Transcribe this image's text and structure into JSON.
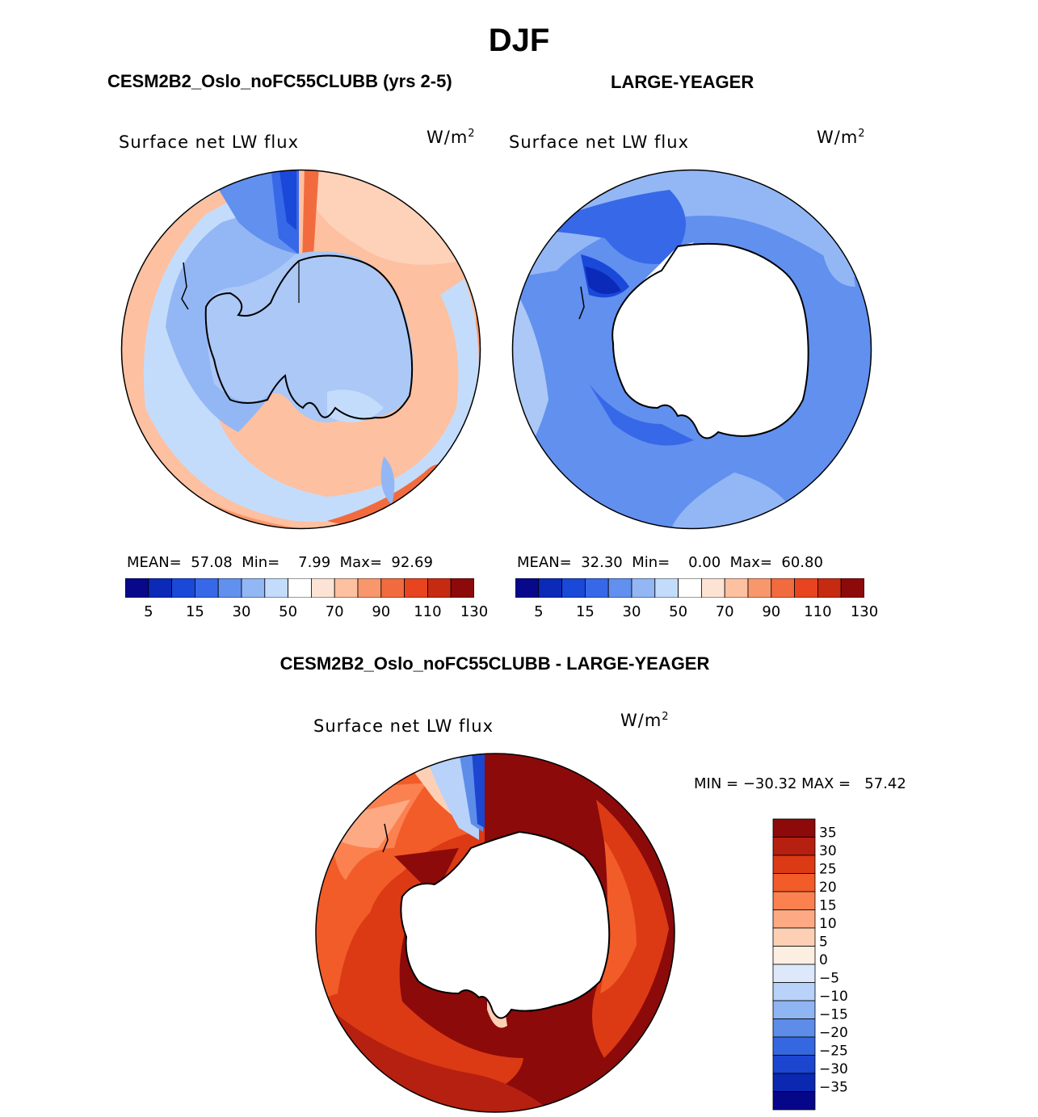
{
  "page": {
    "title": "DJF",
    "left_title": "CESM2B2_Oslo_noFC55CLUBB (yrs 2-5)",
    "right_title": "LARGE-YEAGER",
    "diff_title": "CESM2B2_Oslo_noFC55CLUBB - LARGE-YEAGER"
  },
  "chart_data": [
    {
      "type": "heatmap",
      "projection": "south-polar-stereographic",
      "title": "CESM2B2_Oslo_noFC55CLUBB (yrs 2-5)",
      "variable": "Surface net LW flux",
      "units_base": "W/m",
      "units_exp": "2",
      "stats": {
        "mean_label": "MEAN=",
        "mean": "57.08",
        "min_label": "Min=",
        "min": "7.99",
        "max_label": "Max=",
        "max": "92.69"
      },
      "colorbar": {
        "colors": [
          "#08088a",
          "#0b2ab8",
          "#1a48d8",
          "#3768e8",
          "#6190ef",
          "#93b7f5",
          "#c4dcfb",
          "#ffffff",
          "#fde3d3",
          "#fdc0a0",
          "#f9976c",
          "#f26b3f",
          "#e8441f",
          "#c62a10",
          "#8c0a0a"
        ],
        "tick_labels": [
          "5",
          "15",
          "30",
          "50",
          "70",
          "90",
          "110",
          "130"
        ]
      }
    },
    {
      "type": "heatmap",
      "projection": "south-polar-stereographic",
      "title": "LARGE-YEAGER",
      "variable": "Surface net LW flux",
      "units_base": "W/m",
      "units_exp": "2",
      "stats": {
        "mean_label": "MEAN=",
        "mean": "32.30",
        "min_label": "Min=",
        "min": "0.00",
        "max_label": "Max=",
        "max": "60.80"
      },
      "colorbar": {
        "colors": [
          "#08088a",
          "#0b2ab8",
          "#1a48d8",
          "#3768e8",
          "#6190ef",
          "#93b7f5",
          "#c4dcfb",
          "#ffffff",
          "#fde3d3",
          "#fdc0a0",
          "#f9976c",
          "#f26b3f",
          "#e8441f",
          "#c62a10",
          "#8c0a0a"
        ],
        "tick_labels": [
          "5",
          "15",
          "30",
          "50",
          "70",
          "90",
          "110",
          "130"
        ]
      }
    },
    {
      "type": "heatmap",
      "projection": "south-polar-stereographic",
      "title": "CESM2B2_Oslo_noFC55CLUBB - LARGE-YEAGER",
      "variable": "Surface net LW flux",
      "units_base": "W/m",
      "units_exp": "2",
      "range_text": "MIN = −30.32 MAX =   57.42",
      "colorbar": {
        "colors": [
          "#8c0a0a",
          "#b52010",
          "#dc3a14",
          "#f25c28",
          "#fb8150",
          "#fdaa84",
          "#fdd0b6",
          "#fdeee2",
          "#dde9fb",
          "#b8d2f9",
          "#8fb5f3",
          "#5d8de9",
          "#3568e0",
          "#1c46d0",
          "#0b28b0",
          "#06068a"
        ],
        "levels": [
          "35",
          "30",
          "25",
          "20",
          "15",
          "10",
          "5",
          "0",
          "−5",
          "−10",
          "−15",
          "−20",
          "−25",
          "−30",
          "−35"
        ]
      }
    }
  ]
}
